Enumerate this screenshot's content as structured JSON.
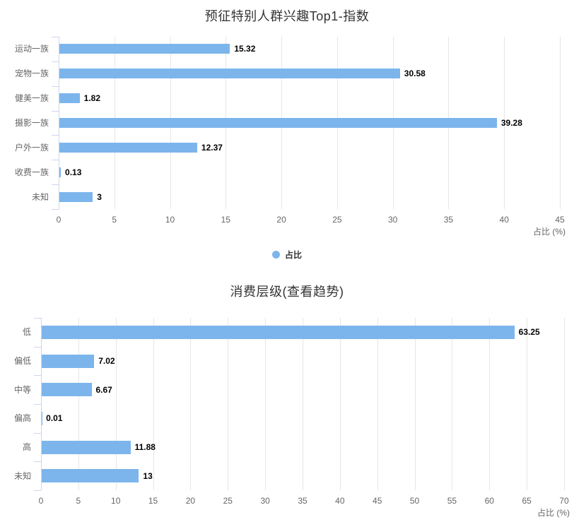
{
  "colors": {
    "bar": "#7cb5ec",
    "grid": "#e6e6e6",
    "axis": "#ccd6eb",
    "text_muted": "#666666",
    "value_label": "#000000",
    "title": "#333333"
  },
  "chart_data": [
    {
      "type": "bar",
      "orientation": "horizontal",
      "title": "预征特别人群兴趣Top1-指数",
      "categories": [
        "运动一族",
        "宠物一族",
        "健美一族",
        "摄影一族",
        "户外一族",
        "收费一族",
        "未知"
      ],
      "values": [
        15.32,
        30.58,
        1.82,
        39.28,
        12.37,
        0.13,
        3
      ],
      "value_labels": [
        "15.32",
        "30.58",
        "1.82",
        "39.28",
        "12.37",
        "0.13",
        "3"
      ],
      "series_name": "占比",
      "xlabel": "占比 (%)",
      "xlim": [
        0,
        45
      ],
      "xticks": [
        0,
        5,
        10,
        15,
        20,
        25,
        30,
        35,
        40,
        45
      ],
      "grid": true,
      "legend": {
        "visible": true,
        "position": "bottom",
        "label": "占比"
      }
    },
    {
      "type": "bar",
      "orientation": "horizontal",
      "title": "消费层级(查看趋势)",
      "categories": [
        "低",
        "偏低",
        "中等",
        "偏高",
        "高",
        "未知"
      ],
      "values": [
        63.25,
        7.02,
        6.67,
        0.01,
        11.88,
        13
      ],
      "value_labels": [
        "63.25",
        "7.02",
        "6.67",
        "0.01",
        "11.88",
        "13"
      ],
      "series_name": "占比",
      "xlabel": "占比 (%)",
      "xlim": [
        0,
        70
      ],
      "xticks": [
        0,
        5,
        10,
        15,
        20,
        25,
        30,
        35,
        40,
        45,
        50,
        55,
        60,
        65,
        70
      ],
      "grid": true,
      "legend": {
        "visible": false
      }
    }
  ]
}
